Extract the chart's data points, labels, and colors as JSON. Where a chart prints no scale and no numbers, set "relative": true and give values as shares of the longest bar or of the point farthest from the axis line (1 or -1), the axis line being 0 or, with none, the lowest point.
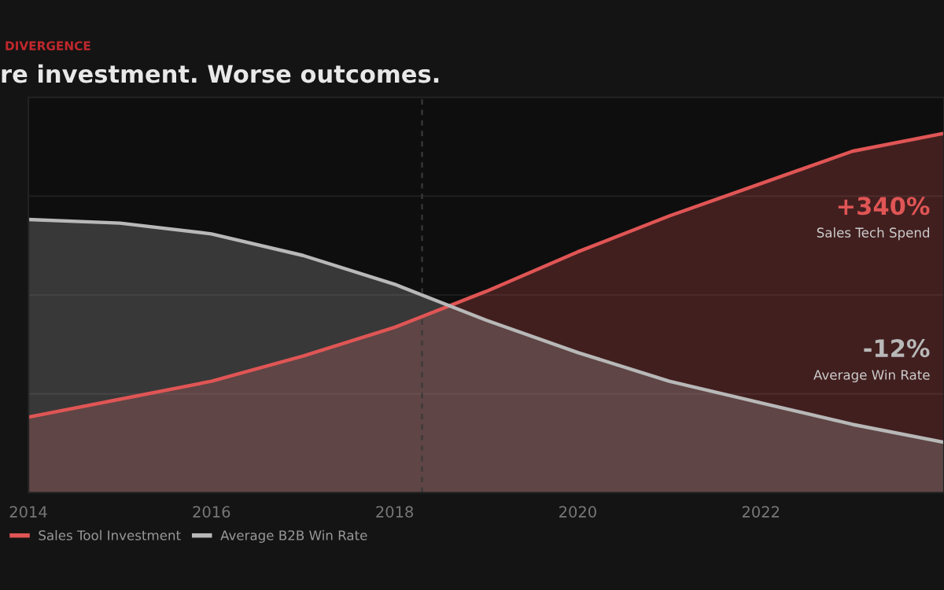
{
  "chart_data": {
    "type": "area",
    "subtitle": "DIVERGENCE",
    "title": "re investment. Worse outcomes.",
    "relative": true,
    "x": [
      2014,
      2015,
      2016,
      2017,
      2018,
      2019,
      2020,
      2021,
      2022,
      2023,
      2024
    ],
    "series": [
      {
        "name": "Sales Tool Investment",
        "color": "#e05555",
        "values": [
          0.21,
          0.26,
          0.31,
          0.38,
          0.46,
          0.56,
          0.67,
          0.77,
          0.86,
          0.95,
          1.0
        ]
      },
      {
        "name": "Average B2B Win Rate",
        "color": "#b8b8b8",
        "values": [
          0.76,
          0.75,
          0.72,
          0.66,
          0.58,
          0.48,
          0.39,
          0.31,
          0.25,
          0.19,
          0.14
        ]
      }
    ],
    "xlim": [
      2014,
      2024
    ],
    "xticks": [
      2014,
      2016,
      2018,
      2020,
      2022
    ],
    "ref_lines": [
      {
        "axis": "x",
        "value": 2018.3,
        "color": "#3a3a3a",
        "line_style": "dashed"
      }
    ],
    "annotations": [
      "+340%",
      "Sales Tech Spend",
      "-12%",
      "Average Win Rate"
    ],
    "grid": "y",
    "legend": "bottom left"
  }
}
